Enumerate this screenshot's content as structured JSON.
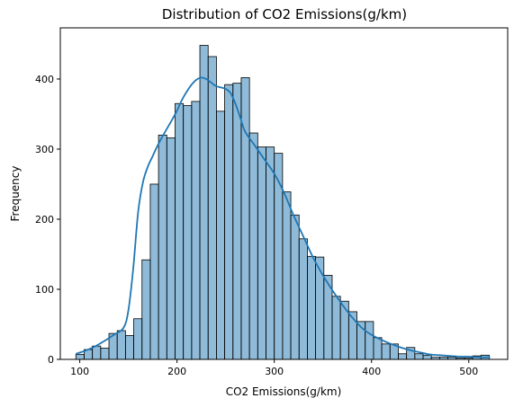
{
  "chart_data": {
    "type": "bar",
    "title": "Distribution of CO2 Emissions(g/km)",
    "xlabel": "CO2 Emissions(g/km)",
    "ylabel": "Frequency",
    "xlim": [
      80,
      540
    ],
    "ylim": [
      0,
      473
    ],
    "xticks": [
      100,
      200,
      300,
      400,
      500
    ],
    "yticks": [
      0,
      100,
      200,
      300,
      400
    ],
    "grid": false,
    "bin_start": 96,
    "bin_width": 8.5,
    "values": [
      7,
      14,
      19,
      16,
      37,
      41,
      34,
      58,
      142,
      250,
      320,
      316,
      365,
      362,
      368,
      448,
      432,
      354,
      392,
      394,
      402,
      323,
      303,
      303,
      294,
      239,
      206,
      172,
      147,
      146,
      120,
      90,
      83,
      68,
      54,
      54,
      31,
      22,
      22,
      8,
      17,
      8,
      6,
      3,
      3,
      3,
      2,
      2,
      5,
      6
    ],
    "kde": {
      "x": [
        96,
        105,
        115,
        125,
        135,
        145,
        150,
        155,
        160,
        165,
        170,
        175,
        180,
        185,
        190,
        195,
        200,
        205,
        210,
        215,
        220,
        225,
        230,
        235,
        240,
        245,
        250,
        255,
        260,
        265,
        270,
        280,
        290,
        300,
        310,
        320,
        330,
        340,
        350,
        360,
        370,
        380,
        390,
        400,
        410,
        420,
        430,
        440,
        450,
        460,
        470,
        480,
        490,
        500,
        510,
        522
      ],
      "y": [
        8,
        12,
        18,
        26,
        35,
        45,
        70,
        130,
        210,
        253,
        275,
        290,
        305,
        318,
        330,
        342,
        355,
        370,
        382,
        392,
        399,
        402,
        400,
        395,
        390,
        388,
        386,
        380,
        365,
        345,
        325,
        305,
        285,
        265,
        238,
        205,
        175,
        145,
        120,
        98,
        78,
        60,
        45,
        35,
        28,
        22,
        17,
        13,
        10,
        7,
        6,
        5,
        4,
        4,
        3,
        3
      ]
    }
  }
}
